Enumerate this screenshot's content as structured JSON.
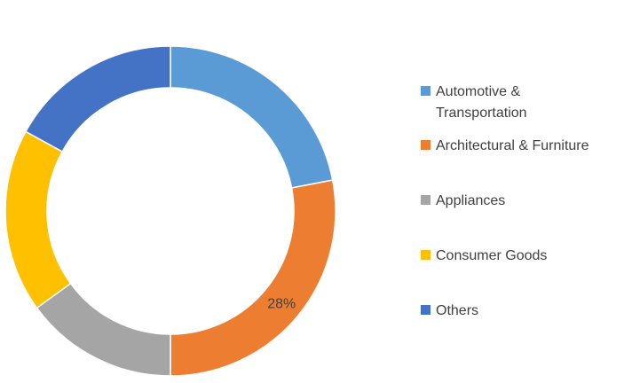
{
  "chart_data": {
    "type": "pie",
    "donut": true,
    "title": "",
    "legend_position": "right",
    "slices": [
      {
        "name": "Automotive & Transportation",
        "value": 22,
        "color": "#5B9BD5"
      },
      {
        "name": "Architectural & Furniture",
        "value": 28,
        "color": "#ED7D31",
        "label": "28%"
      },
      {
        "name": "Appliances",
        "value": 15,
        "color": "#A5A5A5"
      },
      {
        "name": "Consumer Goods",
        "value": 18,
        "color": "#FFC000"
      },
      {
        "name": "Others",
        "value": 17,
        "color": "#4472C4"
      }
    ]
  }
}
